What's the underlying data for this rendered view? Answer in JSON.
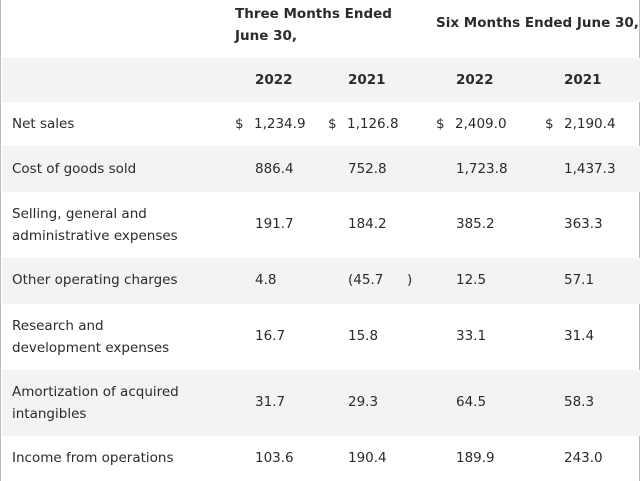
{
  "header": {
    "group1": "Three Months Ended June 30,",
    "group2": "Six Months Ended June 30,",
    "years": [
      "2022",
      "2021",
      "2022",
      "2021"
    ]
  },
  "rows": [
    {
      "label": "Net sales",
      "c1_sym": "$",
      "c1": "1,234.9",
      "c2_sym": "$",
      "c2": "1,126.8",
      "c3_sym": "$",
      "c3": "2,409.0",
      "c4_sym": "$",
      "c4": "2,190.4"
    },
    {
      "label": "Cost of goods sold",
      "c1": "886.4",
      "c2": "752.8",
      "c3": "1,723.8",
      "c4": "1,437.3"
    },
    {
      "label": "Selling, general and administrative expenses",
      "c1": "191.7",
      "c2": "184.2",
      "c3": "385.2",
      "c4": "363.3"
    },
    {
      "label": "Other operating charges",
      "c1": "4.8",
      "c2": "(45.7",
      "c2_paren": ")",
      "c3": "12.5",
      "c4": "57.1"
    },
    {
      "label": "Research and development expenses",
      "c1": "16.7",
      "c2": "15.8",
      "c3": "33.1",
      "c4": "31.4"
    },
    {
      "label": "Amortization of acquired intangibles",
      "c1": "31.7",
      "c2": "29.3",
      "c3": "64.5",
      "c4": "58.3"
    },
    {
      "label": "Income from operations",
      "c1": "103.6",
      "c2": "190.4",
      "c3": "189.9",
      "c4": "243.0"
    }
  ]
}
